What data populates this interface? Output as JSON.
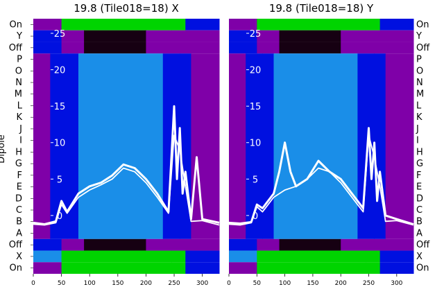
{
  "ylabel": "Dipole",
  "row_labels": [
    "On",
    "Y",
    "Off",
    "P",
    "O",
    "N",
    "M",
    "L",
    "K",
    "J",
    "I",
    "H",
    "G",
    "F",
    "E",
    "D",
    "C",
    "B",
    "A",
    "Off",
    "X",
    "On"
  ],
  "colors": {
    "purple": "#7f00a8",
    "blue": "#0010e0",
    "lightblue": "#1a8ee8",
    "green": "#00d400",
    "black": "#160012",
    "overlay": "#ffffff"
  },
  "chart_data": [
    {
      "type": "heatmap",
      "title": "19.8 (Tile018=18) X",
      "xticks": [
        0,
        50,
        100,
        150,
        200,
        250,
        300
      ],
      "xlim": [
        0,
        330
      ],
      "overlay_ticks": [
        25,
        20,
        15,
        10,
        5,
        0
      ],
      "overlay_ylim": [
        -8,
        27
      ],
      "bands": [
        {
          "row": "On",
          "segments": [
            [
              0,
              50,
              "purple"
            ],
            [
              50,
              245,
              "green"
            ],
            [
              245,
              270,
              "green"
            ],
            [
              270,
              330,
              "blue"
            ]
          ]
        },
        {
          "row": "Y",
          "segments": [
            [
              0,
              50,
              "blue"
            ],
            [
              50,
              90,
              "purple"
            ],
            [
              90,
              200,
              "black"
            ],
            [
              200,
              330,
              "purple"
            ]
          ]
        },
        {
          "row": "Off",
          "segments": [
            [
              0,
              50,
              "blue"
            ],
            [
              50,
              90,
              "purple"
            ],
            [
              90,
              200,
              "black"
            ],
            [
              200,
              330,
              "purple"
            ]
          ]
        },
        {
          "row": "P-A",
          "segments": [
            [
              0,
              30,
              "purple"
            ],
            [
              30,
              60,
              "blue"
            ],
            [
              60,
              80,
              "blue"
            ],
            [
              80,
              230,
              "lightblue"
            ],
            [
              230,
              260,
              "blue"
            ],
            [
              260,
              280,
              "blue"
            ],
            [
              280,
              330,
              "purple"
            ]
          ]
        },
        {
          "row": "Off",
          "segments": [
            [
              0,
              50,
              "blue"
            ],
            [
              50,
              90,
              "purple"
            ],
            [
              90,
              200,
              "black"
            ],
            [
              200,
              330,
              "purple"
            ]
          ]
        },
        {
          "row": "X",
          "segments": [
            [
              0,
              50,
              "lightblue"
            ],
            [
              50,
              245,
              "green"
            ],
            [
              245,
              270,
              "green"
            ],
            [
              270,
              330,
              "blue"
            ]
          ]
        },
        {
          "row": "On",
          "segments": [
            [
              0,
              50,
              "purple"
            ],
            [
              50,
              245,
              "green"
            ],
            [
              245,
              270,
              "green"
            ],
            [
              270,
              330,
              "blue"
            ]
          ]
        }
      ],
      "series": [
        {
          "x": [
            0,
            20,
            40,
            50,
            60,
            80,
            100,
            120,
            140,
            160,
            180,
            200,
            220,
            240,
            250,
            255,
            260,
            265,
            270,
            280,
            290,
            300,
            330
          ],
          "y": [
            -1,
            -1.2,
            -0.8,
            2,
            0.5,
            3,
            4,
            4.5,
            5.5,
            7,
            6.5,
            5,
            3,
            0.5,
            15,
            5,
            12,
            3,
            6,
            -0.5,
            8,
            -0.5,
            -1
          ]
        },
        {
          "x": [
            0,
            20,
            40,
            50,
            60,
            80,
            100,
            120,
            140,
            160,
            180,
            200,
            220,
            240,
            250,
            260,
            270,
            280,
            300,
            330
          ],
          "y": [
            -1.2,
            -1.3,
            -1,
            1.5,
            0.3,
            2.5,
            3.5,
            4.2,
            5,
            6.5,
            6,
            4.5,
            2.5,
            0.3,
            11,
            9,
            4,
            -0.8,
            -0.7,
            -1.3
          ]
        }
      ]
    },
    {
      "type": "heatmap",
      "title": "19.8 (Tile018=18) Y",
      "xticks": [
        0,
        50,
        100,
        150,
        200,
        250,
        300
      ],
      "xlim": [
        0,
        330
      ],
      "overlay_ticks": [
        25,
        20,
        15,
        10,
        5,
        0
      ],
      "overlay_ylim": [
        -8,
        27
      ],
      "bands": [
        {
          "row": "On",
          "segments": [
            [
              0,
              50,
              "purple"
            ],
            [
              50,
              245,
              "green"
            ],
            [
              245,
              270,
              "green"
            ],
            [
              270,
              330,
              "blue"
            ]
          ]
        },
        {
          "row": "Y",
          "segments": [
            [
              0,
              50,
              "blue"
            ],
            [
              50,
              90,
              "purple"
            ],
            [
              90,
              200,
              "black"
            ],
            [
              200,
              330,
              "purple"
            ]
          ]
        },
        {
          "row": "Off",
          "segments": [
            [
              0,
              50,
              "blue"
            ],
            [
              50,
              90,
              "purple"
            ],
            [
              90,
              200,
              "black"
            ],
            [
              200,
              330,
              "purple"
            ]
          ]
        },
        {
          "row": "P-A",
          "segments": [
            [
              0,
              30,
              "purple"
            ],
            [
              30,
              60,
              "blue"
            ],
            [
              60,
              80,
              "blue"
            ],
            [
              80,
              230,
              "lightblue"
            ],
            [
              230,
              260,
              "blue"
            ],
            [
              260,
              280,
              "blue"
            ],
            [
              280,
              330,
              "purple"
            ]
          ]
        },
        {
          "row": "Off",
          "segments": [
            [
              0,
              50,
              "blue"
            ],
            [
              50,
              90,
              "purple"
            ],
            [
              90,
              200,
              "black"
            ],
            [
              200,
              330,
              "purple"
            ]
          ]
        },
        {
          "row": "X",
          "segments": [
            [
              0,
              50,
              "lightblue"
            ],
            [
              50,
              245,
              "green"
            ],
            [
              245,
              270,
              "green"
            ],
            [
              270,
              330,
              "blue"
            ]
          ]
        },
        {
          "row": "On",
          "segments": [
            [
              0,
              50,
              "purple"
            ],
            [
              50,
              245,
              "green"
            ],
            [
              245,
              270,
              "green"
            ],
            [
              270,
              330,
              "blue"
            ]
          ]
        }
      ],
      "series": [
        {
          "x": [
            0,
            20,
            40,
            50,
            60,
            80,
            90,
            100,
            110,
            120,
            140,
            160,
            180,
            200,
            220,
            240,
            250,
            255,
            260,
            265,
            270,
            280,
            300,
            330
          ],
          "y": [
            -1,
            -1.1,
            -0.9,
            1.5,
            1,
            3,
            6,
            10,
            6,
            4,
            5,
            7.5,
            6,
            5,
            3,
            1,
            12,
            5,
            10,
            2,
            6,
            0,
            -0.5,
            -1.2
          ]
        },
        {
          "x": [
            0,
            20,
            40,
            50,
            60,
            80,
            100,
            120,
            140,
            160,
            180,
            200,
            220,
            240,
            250,
            260,
            270,
            280,
            300,
            330
          ],
          "y": [
            -1.2,
            -1.3,
            -1,
            1.2,
            0.5,
            2.5,
            3.5,
            4,
            5,
            6.5,
            6,
            4.5,
            2.5,
            0.5,
            11,
            8,
            4,
            -0.8,
            -0.7,
            -1.3
          ]
        }
      ]
    }
  ]
}
